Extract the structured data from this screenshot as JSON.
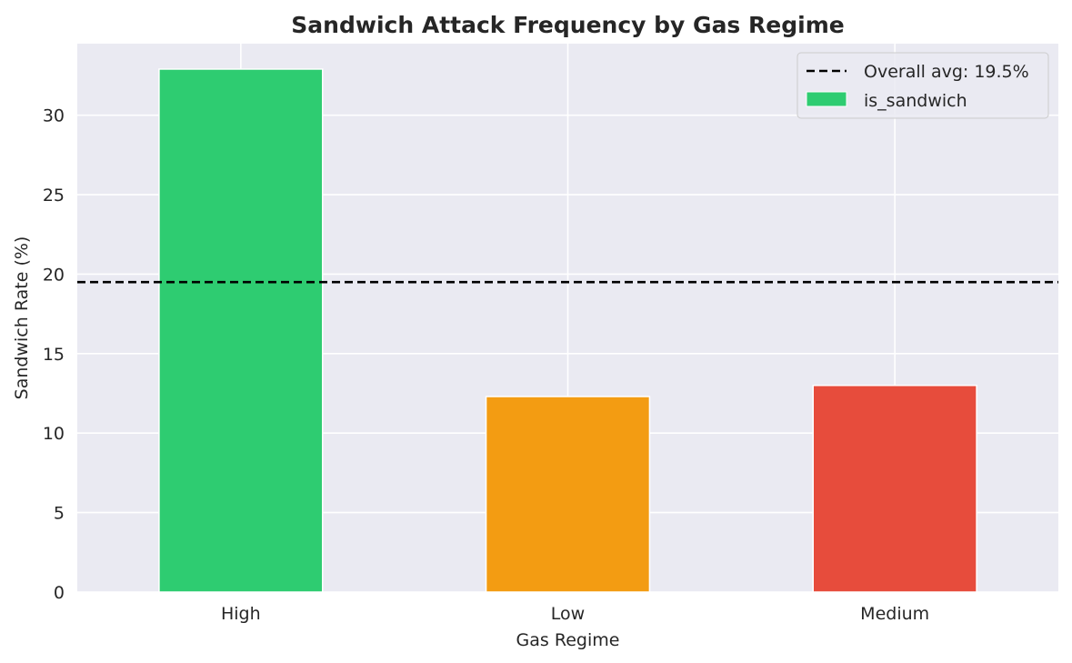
{
  "chart_data": {
    "type": "bar",
    "title": "Sandwich Attack Frequency by Gas Regime",
    "xlabel": "Gas Regime",
    "ylabel": "Sandwich Rate (%)",
    "categories": [
      "High",
      "Low",
      "Medium"
    ],
    "series": [
      {
        "name": "is_sandwich",
        "values": [
          32.9,
          12.3,
          13.0
        ]
      }
    ],
    "bar_colors": [
      "#2ecc71",
      "#f39c12",
      "#e74c3c"
    ],
    "ylim": [
      0,
      34.5
    ],
    "yticks": [
      0,
      5,
      10,
      15,
      20,
      25,
      30
    ],
    "reference_line": {
      "label": "Overall avg: 19.5%",
      "value": 19.5,
      "style": "dashed",
      "color": "#000000"
    },
    "legend": {
      "position": "top-right",
      "entries": [
        "Overall avg: 19.5%",
        "is_sandwich"
      ]
    },
    "grid": true,
    "plot_background": "#eaeaf2",
    "grid_color": "#ffffff"
  }
}
